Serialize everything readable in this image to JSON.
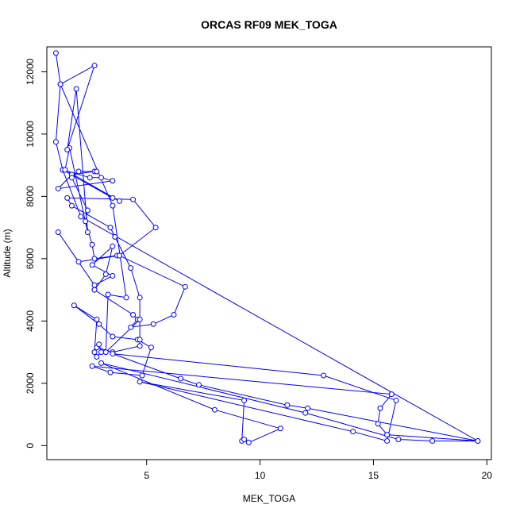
{
  "chart_data": {
    "type": "line",
    "title": "ORCAS RF09 MEK_TOGA",
    "xlabel": "MEK_TOGA",
    "ylabel": "Altitude (m)",
    "xlim": [
      0.6,
      20.2
    ],
    "ylim": [
      -450,
      12800
    ],
    "xticks": [
      5,
      10,
      15,
      20
    ],
    "yticks": [
      0,
      2000,
      4000,
      6000,
      8000,
      10000,
      12000
    ],
    "grid": false,
    "legend": "none",
    "series": [
      {
        "color": "#0000ff",
        "marker": "open-circle",
        "line": "connected",
        "points": [
          {
            "x": 1.0,
            "y": 12600
          },
          {
            "x": 1.2,
            "y": 11600
          },
          {
            "x": 1.0,
            "y": 9750
          },
          {
            "x": 1.3,
            "y": 8850
          },
          {
            "x": 2.5,
            "y": 8600
          },
          {
            "x": 3.0,
            "y": 8600
          },
          {
            "x": 3.5,
            "y": 8500
          },
          {
            "x": 1.1,
            "y": 8250
          },
          {
            "x": 1.7,
            "y": 8700
          },
          {
            "x": 2.7,
            "y": 8800
          },
          {
            "x": 2.8,
            "y": 8800
          },
          {
            "x": 2.0,
            "y": 8800
          },
          {
            "x": 1.7,
            "y": 8600
          },
          {
            "x": 2.4,
            "y": 7550
          },
          {
            "x": 2.3,
            "y": 7200
          },
          {
            "x": 2.6,
            "y": 6450
          },
          {
            "x": 2.7,
            "y": 6000
          },
          {
            "x": 3.7,
            "y": 6100
          },
          {
            "x": 3.8,
            "y": 6100
          },
          {
            "x": 2.0,
            "y": 5900
          },
          {
            "x": 1.1,
            "y": 6850
          },
          {
            "x": 2.7,
            "y": 5150
          },
          {
            "x": 3.5,
            "y": 5450
          },
          {
            "x": 2.6,
            "y": 5800
          },
          {
            "x": 3.5,
            "y": 6400
          },
          {
            "x": 3.2,
            "y": 5500
          },
          {
            "x": 2.7,
            "y": 5000
          },
          {
            "x": 4.4,
            "y": 4200
          },
          {
            "x": 4.6,
            "y": 4050
          },
          {
            "x": 4.3,
            "y": 3800
          },
          {
            "x": 5.3,
            "y": 3900
          },
          {
            "x": 6.2,
            "y": 4200
          },
          {
            "x": 6.7,
            "y": 5100
          },
          {
            "x": 3.8,
            "y": 6100
          },
          {
            "x": 5.4,
            "y": 7000
          },
          {
            "x": 4.4,
            "y": 7900
          },
          {
            "x": 1.5,
            "y": 7950
          },
          {
            "x": 1.7,
            "y": 7700
          },
          {
            "x": 3.4,
            "y": 7000
          },
          {
            "x": 3.6,
            "y": 6700
          },
          {
            "x": 4.3,
            "y": 5700
          },
          {
            "x": 4.7,
            "y": 4750
          },
          {
            "x": 4.7,
            "y": 3200
          },
          {
            "x": 3.5,
            "y": 3000
          },
          {
            "x": 2.8,
            "y": 3150
          },
          {
            "x": 2.9,
            "y": 3250
          },
          {
            "x": 3.0,
            "y": 3000
          },
          {
            "x": 2.8,
            "y": 2850
          },
          {
            "x": 2.7,
            "y": 3000
          },
          {
            "x": 2.8,
            "y": 4050
          },
          {
            "x": 1.8,
            "y": 4500
          },
          {
            "x": 2.9,
            "y": 3900
          },
          {
            "x": 3.5,
            "y": 3500
          },
          {
            "x": 4.6,
            "y": 3400
          },
          {
            "x": 5.2,
            "y": 3150
          },
          {
            "x": 4.8,
            "y": 2250
          },
          {
            "x": 3.4,
            "y": 2350
          },
          {
            "x": 2.6,
            "y": 2550
          },
          {
            "x": 15.8,
            "y": 1650
          },
          {
            "x": 15.3,
            "y": 1200
          },
          {
            "x": 15.2,
            "y": 700
          },
          {
            "x": 15.6,
            "y": 350
          },
          {
            "x": 19.6,
            "y": 150
          },
          {
            "x": 12.1,
            "y": 1200
          },
          {
            "x": 11.2,
            "y": 1300
          },
          {
            "x": 7.3,
            "y": 1950
          },
          {
            "x": 6.5,
            "y": 2150
          },
          {
            "x": 3.5,
            "y": 2950
          },
          {
            "x": 12.8,
            "y": 2250
          },
          {
            "x": 16.0,
            "y": 1450
          },
          {
            "x": 15.6,
            "y": 150
          },
          {
            "x": 14.1,
            "y": 450
          },
          {
            "x": 4.7,
            "y": 2050
          },
          {
            "x": 9.3,
            "y": 1450
          },
          {
            "x": 9.2,
            "y": 150
          },
          {
            "x": 9.3,
            "y": 200
          },
          {
            "x": 9.5,
            "y": 100
          },
          {
            "x": 10.9,
            "y": 550
          },
          {
            "x": 8.0,
            "y": 1150
          },
          {
            "x": 3.0,
            "y": 2650
          },
          {
            "x": 12.0,
            "y": 1050
          },
          {
            "x": 16.1,
            "y": 200
          },
          {
            "x": 17.6,
            "y": 150
          },
          {
            "x": 19.6,
            "y": 150
          },
          {
            "x": 2.1,
            "y": 7350
          },
          {
            "x": 1.3,
            "y": 8850
          },
          {
            "x": 3.5,
            "y": 7950
          },
          {
            "x": 3.8,
            "y": 7850
          },
          {
            "x": 1.4,
            "y": 8850
          },
          {
            "x": 1.6,
            "y": 9550
          },
          {
            "x": 2.4,
            "y": 6850
          },
          {
            "x": 1.9,
            "y": 11450
          },
          {
            "x": 1.5,
            "y": 9500
          },
          {
            "x": 2.7,
            "y": 12200
          },
          {
            "x": 1.2,
            "y": 11600
          },
          {
            "x": 3.5,
            "y": 7700
          },
          {
            "x": 4.1,
            "y": 4750
          },
          {
            "x": 3.3,
            "y": 4850
          },
          {
            "x": 3.2,
            "y": 3000
          },
          {
            "x": 4.7,
            "y": 4050
          },
          {
            "x": 4.7,
            "y": 3400
          }
        ]
      }
    ]
  }
}
